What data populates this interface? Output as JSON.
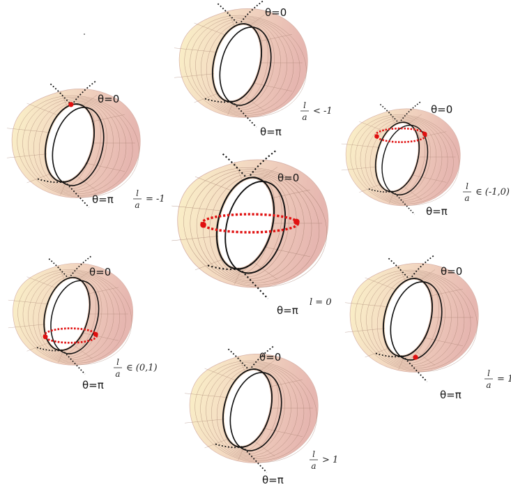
{
  "theta_top": "θ=0",
  "theta_bottom": "θ=π",
  "colors": {
    "surface_light": "#fbf2c8",
    "surface_dark": "#e6b6b0",
    "mesh": "#a07a6a",
    "ring": "#111111",
    "seam": "#111111",
    "highlight": "#e01010"
  },
  "panels": [
    {
      "id": "lt-minus1",
      "condition": {
        "numerator": "l",
        "denominator": "a",
        "rest": "< -1"
      },
      "intersection": "none"
    },
    {
      "id": "l-minus1",
      "condition": {
        "numerator": "l",
        "denominator": "a",
        "rest": "= -1"
      },
      "intersection": "point-top"
    },
    {
      "id": "between-minus1-0",
      "condition": {
        "numerator": "l",
        "denominator": "a",
        "rest": "∈ (-1,0)"
      },
      "intersection": "ring-upper"
    },
    {
      "id": "l-zero",
      "condition": {
        "text": "l = 0"
      },
      "intersection": "ring-middle"
    },
    {
      "id": "between-0-1",
      "condition": {
        "numerator": "l",
        "denominator": "a",
        "rest": "∈ (0,1)"
      },
      "intersection": "ring-lower"
    },
    {
      "id": "l-plus1",
      "condition": {
        "numerator": "l",
        "denominator": "a",
        "rest": "= 1"
      },
      "intersection": "point-bottom"
    },
    {
      "id": "gt-plus1",
      "condition": {
        "numerator": "l",
        "denominator": "a",
        "rest": "> 1"
      },
      "intersection": "none"
    }
  ]
}
